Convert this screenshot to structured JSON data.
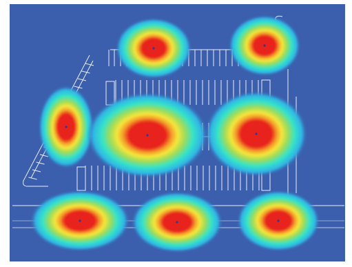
{
  "colors": {
    "frame": "#ffffff",
    "background_low": "#3b5fad",
    "background_edge": "#2f4fa0",
    "scale": [
      "#3b5fad",
      "#2fb3e6",
      "#34e3ca",
      "#9fdc5a",
      "#f6e63a",
      "#f39b2a",
      "#e8201b"
    ],
    "lines": "#ffffff",
    "fixture_marker": "#2a3b9c"
  },
  "fixtures": [
    {
      "id": "top-left",
      "intensity": 1.0
    },
    {
      "id": "top-right",
      "intensity": 1.0
    },
    {
      "id": "mid-far-left",
      "intensity": 1.0
    },
    {
      "id": "mid-center",
      "intensity": 1.0
    },
    {
      "id": "mid-right",
      "intensity": 1.0
    },
    {
      "id": "bottom-left",
      "intensity": 1.0
    },
    {
      "id": "bottom-center",
      "intensity": 1.0
    },
    {
      "id": "bottom-right",
      "intensity": 1.0
    }
  ]
}
